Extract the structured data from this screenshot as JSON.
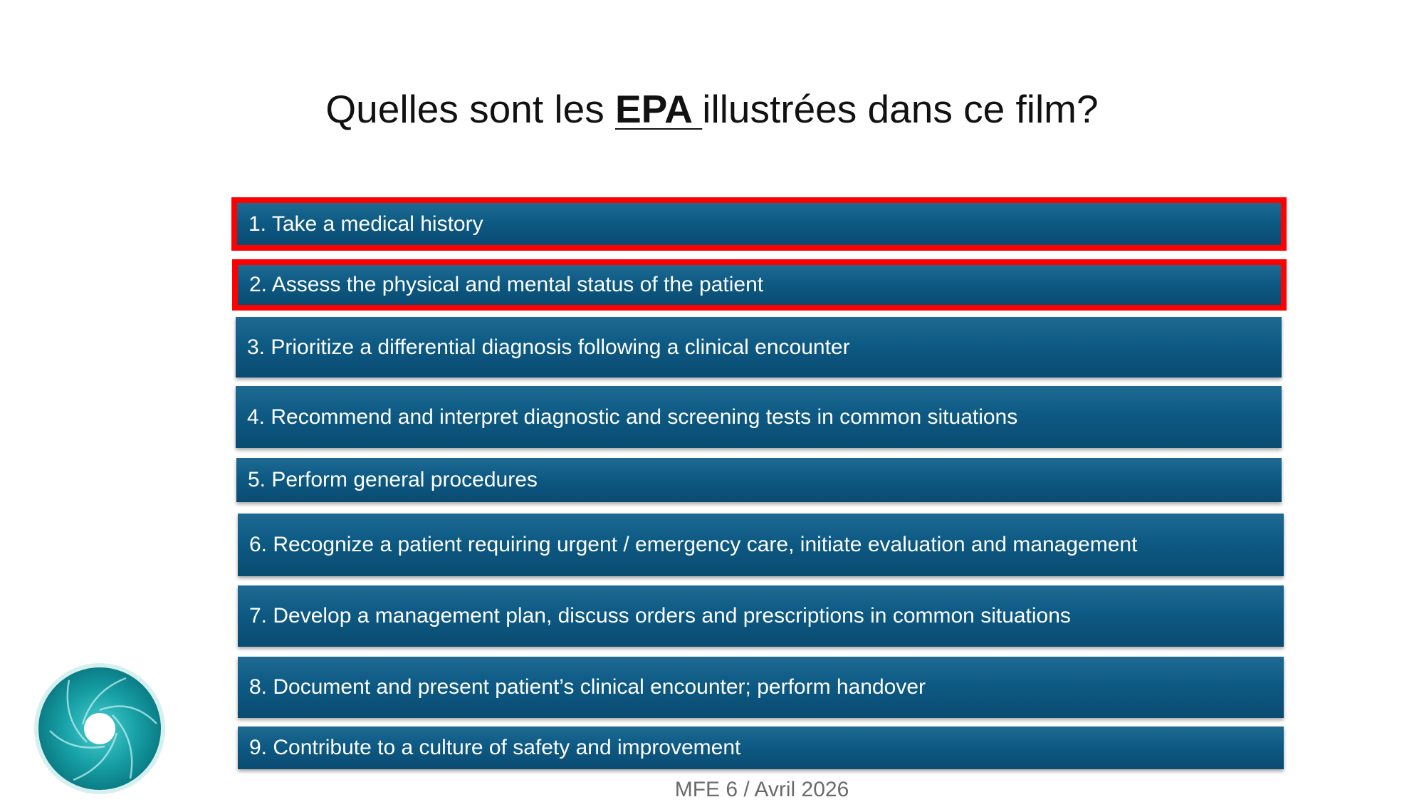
{
  "slide": {
    "title_before": "Quelles sont les ",
    "title_emphasis": "EPA ",
    "title_after": "illustrées dans ce film?",
    "footer": "MFE 6 / Avril 2026"
  },
  "epas": [
    {
      "label": "1. Take a medical history",
      "highlighted": true
    },
    {
      "label": "2. Assess the physical and mental status of the patient",
      "highlighted": true
    },
    {
      "label": "3. Prioritize a differential diagnosis following a clinical encounter",
      "highlighted": false
    },
    {
      "label": "4. Recommend and interpret diagnostic and screening tests in common situations",
      "highlighted": false
    },
    {
      "label": "5. Perform general procedures",
      "highlighted": false
    },
    {
      "label": "6. Recognize a patient requiring urgent / emergency care, initiate evaluation and management",
      "highlighted": false
    },
    {
      "label": "7. Develop a management plan, discuss orders and prescriptions in common situations",
      "highlighted": false
    },
    {
      "label": "8. Document and present patient’s clinical encounter; perform handover",
      "highlighted": false
    },
    {
      "label": "9. Contribute to a culture of safety and improvement",
      "highlighted": false
    }
  ],
  "colors": {
    "item_background": "#0d5a84",
    "item_text": "#ffffff",
    "highlight_border": "#ff0000",
    "logo_teal": "#1aa3a8"
  },
  "logo": {
    "icon": "teal-swirl-logo-icon"
  }
}
